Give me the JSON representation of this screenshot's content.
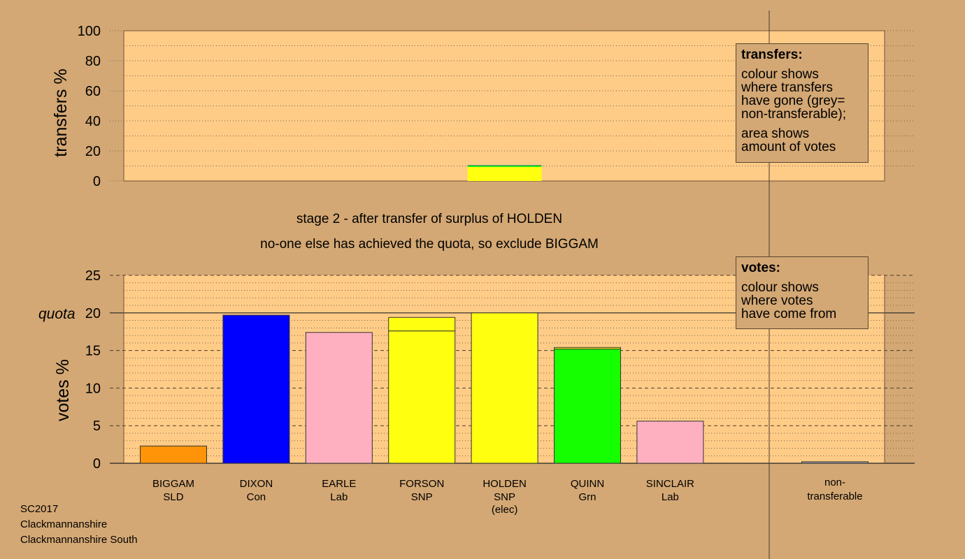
{
  "colors": {
    "background": "#d4a874",
    "plot_bg": "#ffcc88",
    "SLD": "#ff9408",
    "Con": "#0000ff",
    "Lab": "#ffb0c0",
    "SNP": "#ffff10",
    "Grn": "#16ff00",
    "nontransferable": "#a0a0a0",
    "transfer_line": "#3c9a68"
  },
  "stage_text": {
    "line1": "stage 2 - after transfer of surplus of HOLDEN",
    "line2": "no-one else has achieved the quota, so exclude BIGGAM"
  },
  "legend_transfers": {
    "title": "transfers:",
    "text1": [
      "colour shows",
      "where transfers",
      "have gone (grey=",
      "non-transferable);"
    ],
    "text2": [
      "area shows",
      "amount of votes"
    ]
  },
  "legend_votes": {
    "title": "votes:",
    "text1": [
      "colour shows",
      "where votes",
      "have come from"
    ]
  },
  "footer": [
    "SC2017",
    "Clackmannanshire",
    "Clackmannanshire South"
  ],
  "chart_data": [
    {
      "type": "bar",
      "ylabel": "transfers %",
      "ylim": [
        0,
        100
      ],
      "yticks": [
        0,
        20,
        40,
        60,
        80,
        100
      ],
      "grid": "dotted",
      "transfer_from": "HOLDEN",
      "bars": [
        {
          "from": "HOLDEN",
          "segments": [
            {
              "party": "SNP",
              "value": 9.3
            },
            {
              "party": "Grn",
              "value": 1.0
            }
          ]
        }
      ]
    },
    {
      "type": "bar",
      "ylabel": "votes %",
      "ylim": [
        0,
        25
      ],
      "yticks": [
        0,
        5,
        10,
        15,
        20,
        25
      ],
      "quota": 20,
      "quota_label": "quota",
      "grid": "dotted",
      "candidates": [
        {
          "name": "BIGGAM",
          "party": "SLD",
          "extra": "",
          "segments": [
            {
              "party": "SLD",
              "value": 2.3
            }
          ]
        },
        {
          "name": "DIXON",
          "party": "Con",
          "extra": "",
          "segments": [
            {
              "party": "Con",
              "value": 19.7
            }
          ]
        },
        {
          "name": "EARLE",
          "party": "Lab",
          "extra": "",
          "segments": [
            {
              "party": "Lab",
              "value": 17.4
            }
          ]
        },
        {
          "name": "FORSON",
          "party": "SNP",
          "extra": "",
          "segments": [
            {
              "party": "SNP",
              "value": 17.6
            },
            {
              "party": "SNP",
              "value": 1.8
            }
          ]
        },
        {
          "name": "HOLDEN",
          "party": "SNP",
          "extra": "(elec)",
          "segments": [
            {
              "party": "SNP",
              "value": 20.0
            }
          ]
        },
        {
          "name": "QUINN",
          "party": "Grn",
          "extra": "",
          "segments": [
            {
              "party": "Grn",
              "value": 15.2
            },
            {
              "party": "SNP",
              "value": 0.2
            }
          ]
        },
        {
          "name": "SINCLAIR",
          "party": "Lab",
          "extra": "",
          "segments": [
            {
              "party": "Lab",
              "value": 5.6
            }
          ]
        }
      ],
      "nontransferable": {
        "label": [
          "non-",
          "transferable"
        ],
        "value": 0.2
      }
    }
  ]
}
